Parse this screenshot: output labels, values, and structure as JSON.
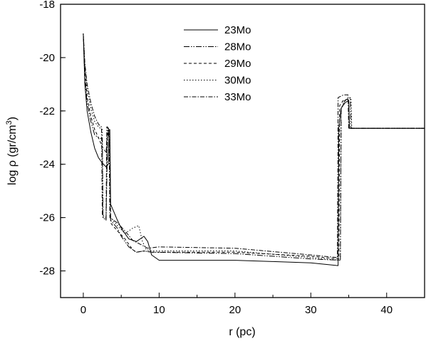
{
  "chart_data": {
    "type": "line",
    "xlabel": "r (pc)",
    "ylabel_main": "log ρ (gr/cm",
    "ylabel_exp": "3",
    "ylabel_close": ")",
    "xlim": [
      -3,
      45
    ],
    "ylim": [
      -29,
      -18
    ],
    "xticks": [
      0,
      10,
      20,
      30,
      40
    ],
    "xtick_labels": [
      "0",
      "10",
      "20",
      "30",
      "40"
    ],
    "yticks": [
      -28,
      -26,
      -24,
      -22,
      -20,
      -18
    ],
    "ytick_labels": [
      "-28",
      "-26",
      "-24",
      "-22",
      "-20",
      "-18"
    ],
    "grid": false,
    "legend_position": "top-center",
    "series": [
      {
        "name": "23Mo",
        "dash": "",
        "points": [
          [
            0,
            -19.1
          ],
          [
            0.2,
            -21.0
          ],
          [
            0.5,
            -22.0
          ],
          [
            1.0,
            -22.8
          ],
          [
            1.5,
            -23.4
          ],
          [
            2.0,
            -23.75
          ],
          [
            2.5,
            -23.95
          ],
          [
            3.0,
            -24.1
          ],
          [
            3.3,
            -24.0
          ],
          [
            3.4,
            -22.7
          ],
          [
            3.5,
            -22.7
          ],
          [
            3.6,
            -25.5
          ],
          [
            3.9,
            -25.7
          ],
          [
            4.5,
            -26.1
          ],
          [
            5.0,
            -26.4
          ],
          [
            6.0,
            -26.8
          ],
          [
            7.0,
            -26.9
          ],
          [
            8.0,
            -26.7
          ],
          [
            8.5,
            -26.9
          ],
          [
            9.0,
            -27.4
          ],
          [
            10,
            -27.6
          ],
          [
            20,
            -27.6
          ],
          [
            25,
            -27.65
          ],
          [
            30,
            -27.7
          ],
          [
            33.6,
            -27.8
          ],
          [
            33.7,
            -22.6
          ],
          [
            34.0,
            -21.9
          ],
          [
            34.5,
            -21.7
          ],
          [
            35.0,
            -21.6
          ],
          [
            35.1,
            -22.65
          ],
          [
            45,
            -22.65
          ]
        ]
      },
      {
        "name": "28Mo",
        "dash": "8 2 1.5 2 1.5 2",
        "points": [
          [
            0,
            -19.1
          ],
          [
            0.2,
            -20.8
          ],
          [
            0.5,
            -21.7
          ],
          [
            1.0,
            -22.4
          ],
          [
            1.5,
            -22.9
          ],
          [
            2.0,
            -23.0
          ],
          [
            2.5,
            -23.05
          ],
          [
            2.6,
            -26.0
          ],
          [
            3.0,
            -26.1
          ],
          [
            3.2,
            -23.0
          ],
          [
            3.3,
            -22.8
          ],
          [
            3.5,
            -23.3
          ],
          [
            3.6,
            -26.1
          ],
          [
            4.5,
            -26.4
          ],
          [
            5.0,
            -26.7
          ],
          [
            6.0,
            -27.1
          ],
          [
            7.0,
            -27.3
          ],
          [
            8.0,
            -27.25
          ],
          [
            9.0,
            -27.3
          ],
          [
            20,
            -27.35
          ],
          [
            30,
            -27.55
          ],
          [
            33.9,
            -27.6
          ],
          [
            34.0,
            -21.9
          ],
          [
            34.5,
            -21.6
          ],
          [
            35.2,
            -21.5
          ],
          [
            35.3,
            -22.65
          ],
          [
            45,
            -22.65
          ]
        ]
      },
      {
        "name": "29Mo",
        "dash": "4 3",
        "points": [
          [
            0,
            -19.1
          ],
          [
            0.2,
            -20.5
          ],
          [
            0.5,
            -21.5
          ],
          [
            1.0,
            -22.2
          ],
          [
            1.5,
            -22.7
          ],
          [
            2.0,
            -23.0
          ],
          [
            2.5,
            -23.35
          ],
          [
            3.0,
            -23.55
          ],
          [
            3.2,
            -22.8
          ],
          [
            3.3,
            -22.7
          ],
          [
            3.5,
            -23.5
          ],
          [
            3.6,
            -26.2
          ],
          [
            4.5,
            -26.5
          ],
          [
            5.5,
            -26.8
          ],
          [
            6.5,
            -27.2
          ],
          [
            7.0,
            -27.3
          ],
          [
            8.0,
            -27.25
          ],
          [
            9.0,
            -27.3
          ],
          [
            20,
            -27.3
          ],
          [
            30,
            -27.45
          ],
          [
            33.7,
            -27.55
          ],
          [
            33.8,
            -21.8
          ],
          [
            34.3,
            -21.6
          ],
          [
            35.0,
            -21.55
          ],
          [
            35.1,
            -22.65
          ],
          [
            45,
            -22.65
          ]
        ]
      },
      {
        "name": "30Mo",
        "dash": "1.5 2.5",
        "points": [
          [
            0,
            -19.1
          ],
          [
            0.2,
            -20.3
          ],
          [
            0.5,
            -21.2
          ],
          [
            1.0,
            -21.9
          ],
          [
            1.5,
            -22.4
          ],
          [
            2.0,
            -22.6
          ],
          [
            2.5,
            -22.7
          ],
          [
            2.6,
            -26.0
          ],
          [
            3.0,
            -26.05
          ],
          [
            3.2,
            -22.7
          ],
          [
            3.3,
            -22.6
          ],
          [
            3.5,
            -23.0
          ],
          [
            3.6,
            -26.0
          ],
          [
            4.5,
            -26.3
          ],
          [
            5.5,
            -26.6
          ],
          [
            6.5,
            -26.4
          ],
          [
            7.3,
            -26.3
          ],
          [
            7.8,
            -26.9
          ],
          [
            8.3,
            -27.2
          ],
          [
            9.0,
            -27.25
          ],
          [
            20,
            -27.25
          ],
          [
            30,
            -27.5
          ],
          [
            33.9,
            -27.6
          ],
          [
            34.0,
            -21.9
          ],
          [
            34.6,
            -21.6
          ],
          [
            35.3,
            -21.5
          ],
          [
            35.4,
            -22.65
          ],
          [
            45,
            -22.65
          ]
        ]
      },
      {
        "name": "33Mo",
        "dash": "6 2 1.5 2",
        "points": [
          [
            0,
            -19.1
          ],
          [
            0.2,
            -20.2
          ],
          [
            0.5,
            -21.0
          ],
          [
            1.0,
            -21.7
          ],
          [
            1.5,
            -22.2
          ],
          [
            2.0,
            -22.5
          ],
          [
            2.4,
            -22.6
          ],
          [
            2.5,
            -25.9
          ],
          [
            3.0,
            -26.0
          ],
          [
            3.1,
            -22.6
          ],
          [
            3.2,
            -22.6
          ],
          [
            3.4,
            -23.0
          ],
          [
            3.5,
            -26.0
          ],
          [
            4.5,
            -26.2
          ],
          [
            5.5,
            -26.5
          ],
          [
            6.5,
            -26.85
          ],
          [
            7.5,
            -27.0
          ],
          [
            8.5,
            -27.15
          ],
          [
            10,
            -27.1
          ],
          [
            20,
            -27.15
          ],
          [
            30,
            -27.4
          ],
          [
            33.5,
            -27.5
          ],
          [
            33.6,
            -21.5
          ],
          [
            34.3,
            -21.4
          ],
          [
            34.9,
            -21.4
          ],
          [
            35.0,
            -22.65
          ],
          [
            45,
            -22.65
          ]
        ]
      }
    ]
  }
}
